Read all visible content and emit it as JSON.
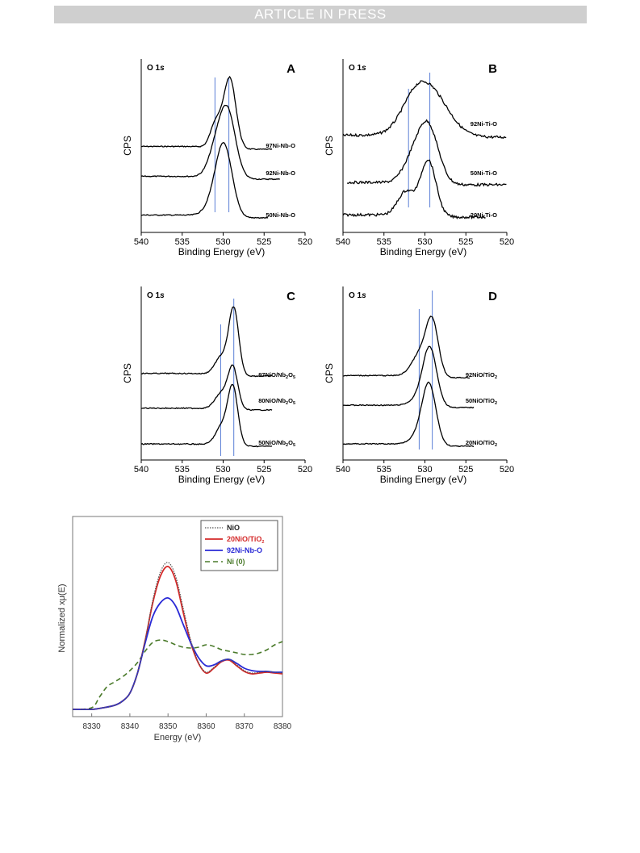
{
  "header": {
    "banner": "ARTICLE IN PRESS"
  },
  "chart_data": [
    {
      "panel": "A",
      "type": "line",
      "core_level": "O 1s",
      "xlabel": "Binding  Energy  (eV)",
      "ylabel": "CPS",
      "xlim": [
        540,
        520
      ],
      "xticks": [
        540,
        535,
        530,
        525,
        520
      ],
      "reference_lines": [
        531.0,
        529.3
      ],
      "series": [
        {
          "name": "97Ni-Nb-O",
          "peaks": [
            {
              "center": 529.2,
              "height": 1.0,
              "width": 0.75
            },
            {
              "center": 530.9,
              "height": 0.35,
              "width": 0.65
            }
          ],
          "x_range": [
            540,
            524
          ]
        },
        {
          "name": "92Ni-Nb-O",
          "peaks": [
            {
              "center": 529.5,
              "height": 0.95,
              "width": 1.0
            },
            {
              "center": 531.0,
              "height": 0.3,
              "width": 0.9
            }
          ],
          "x_range": [
            540,
            523
          ]
        },
        {
          "name": "50Ni-Nb-O",
          "peaks": [
            {
              "center": 529.9,
              "height": 1.0,
              "width": 1.0
            },
            {
              "center": 531.3,
              "height": 0.12,
              "width": 1.0
            }
          ],
          "x_range": [
            540,
            524.5
          ]
        }
      ]
    },
    {
      "panel": "B",
      "type": "line",
      "core_level": "O 1s",
      "xlabel": "Binding  Energy  (eV)",
      "ylabel": "CPS",
      "xlim": [
        540,
        520
      ],
      "xticks": [
        540,
        535,
        530,
        525,
        520
      ],
      "reference_lines": [
        532.0,
        529.4
      ],
      "series": [
        {
          "name": "92Ni-Ti-O",
          "peaks": [
            {
              "center": 529.6,
              "height": 1.0,
              "width": 2.3
            },
            {
              "center": 531.5,
              "height": 0.25,
              "width": 1.5
            }
          ],
          "x_range": [
            540,
            520
          ]
        },
        {
          "name": "50Ni-Ti-O",
          "peaks": [
            {
              "center": 529.7,
              "height": 1.0,
              "width": 1.3
            },
            {
              "center": 531.8,
              "height": 0.25,
              "width": 1.1
            }
          ],
          "x_range": [
            539.5,
            520
          ]
        },
        {
          "name": "20Ni-Ti-O",
          "peaks": [
            {
              "center": 529.6,
              "height": 1.0,
              "width": 0.95
            },
            {
              "center": 532.3,
              "height": 0.42,
              "width": 1.0
            }
          ],
          "x_range": [
            540,
            522.5
          ]
        }
      ]
    },
    {
      "panel": "C",
      "type": "line",
      "core_level": "O 1s",
      "xlabel": "Binding  Energy  (eV)",
      "ylabel": "CPS",
      "xlim": [
        540,
        520
      ],
      "xticks": [
        540,
        535,
        530,
        525,
        520
      ],
      "reference_lines": [
        530.3,
        528.7
      ],
      "series": [
        {
          "name": "97NiO/Nb2O5",
          "peaks": [
            {
              "center": 528.7,
              "height": 1.0,
              "width": 0.6
            },
            {
              "center": 530.2,
              "height": 0.28,
              "width": 0.8
            }
          ],
          "x_range": [
            540,
            524
          ]
        },
        {
          "name": "80NiO/Nb2O5",
          "peaks": [
            {
              "center": 528.8,
              "height": 0.92,
              "width": 0.6
            },
            {
              "center": 530.2,
              "height": 0.36,
              "width": 0.8
            }
          ],
          "x_range": [
            540,
            524
          ]
        },
        {
          "name": "50NiO/Nb2O5",
          "peaks": [
            {
              "center": 528.8,
              "height": 1.0,
              "width": 0.6
            },
            {
              "center": 530.1,
              "height": 0.35,
              "width": 0.8
            }
          ],
          "x_range": [
            540,
            524
          ]
        }
      ]
    },
    {
      "panel": "D",
      "type": "line",
      "core_level": "O 1s",
      "xlabel": "Binding  Energy  (eV)",
      "ylabel": "CPS",
      "xlim": [
        540,
        520
      ],
      "xticks": [
        540,
        535,
        530,
        525,
        520
      ],
      "reference_lines": [
        530.7,
        529.1
      ],
      "series": [
        {
          "name": "92NiO/TiO2",
          "peaks": [
            {
              "center": 529.1,
              "height": 1.0,
              "width": 0.75
            },
            {
              "center": 530.6,
              "height": 0.42,
              "width": 1.0
            }
          ],
          "x_range": [
            540,
            524.5
          ]
        },
        {
          "name": "50NiO/TiO2",
          "peaks": [
            {
              "center": 529.4,
              "height": 1.0,
              "width": 0.85
            },
            {
              "center": 530.8,
              "height": 0.12,
              "width": 1.0
            }
          ],
          "x_range": [
            540,
            524
          ]
        },
        {
          "name": "20NiO/TiO2",
          "peaks": [
            {
              "center": 529.5,
              "height": 1.0,
              "width": 0.85
            },
            {
              "center": 530.9,
              "height": 0.12,
              "width": 1.0
            }
          ],
          "x_range": [
            540,
            524
          ]
        }
      ]
    },
    {
      "panel": "XANES",
      "type": "line",
      "xlabel": "Energy (eV)",
      "ylabel": "Normalized xμ(E)",
      "xlim": [
        8325,
        8380
      ],
      "xticks": [
        8330,
        8340,
        8350,
        8360,
        8370,
        8380
      ],
      "legend": "top-right",
      "series": [
        {
          "name": "NiO",
          "color": "#555555",
          "style": "dotted",
          "x": [
            8325,
            8330,
            8333,
            8336,
            8338,
            8340,
            8342,
            8344,
            8346,
            8348,
            8350,
            8352,
            8354,
            8356,
            8358,
            8360,
            8362,
            8364,
            8366,
            8368,
            8370,
            8372,
            8374,
            8376,
            8378,
            8380
          ],
          "y": [
            0.0,
            0.0,
            0.02,
            0.05,
            0.1,
            0.2,
            0.45,
            0.85,
            1.35,
            1.7,
            1.82,
            1.65,
            1.25,
            0.85,
            0.58,
            0.46,
            0.52,
            0.6,
            0.62,
            0.55,
            0.48,
            0.45,
            0.46,
            0.47,
            0.46,
            0.45
          ]
        },
        {
          "name": "20NiO/TiO2",
          "color": "#d42a2a",
          "style": "solid",
          "x": [
            8325,
            8330,
            8333,
            8336,
            8338,
            8340,
            8342,
            8344,
            8346,
            8348,
            8350,
            8352,
            8354,
            8356,
            8358,
            8360,
            8362,
            8364,
            8366,
            8368,
            8370,
            8372,
            8374,
            8376,
            8378,
            8380
          ],
          "y": [
            0.0,
            0.0,
            0.02,
            0.05,
            0.1,
            0.2,
            0.45,
            0.85,
            1.32,
            1.65,
            1.77,
            1.6,
            1.2,
            0.82,
            0.57,
            0.45,
            0.51,
            0.59,
            0.61,
            0.54,
            0.47,
            0.44,
            0.45,
            0.46,
            0.45,
            0.44
          ]
        },
        {
          "name": "92Ni-Nb-O",
          "color": "#2a2ad6",
          "style": "solid",
          "x": [
            8325,
            8330,
            8333,
            8336,
            8338,
            8340,
            8342,
            8344,
            8346,
            8348,
            8350,
            8352,
            8354,
            8356,
            8358,
            8360,
            8362,
            8364,
            8366,
            8368,
            8370,
            8372,
            8374,
            8376,
            8378,
            8380
          ],
          "y": [
            0.0,
            0.0,
            0.02,
            0.05,
            0.1,
            0.2,
            0.45,
            0.82,
            1.15,
            1.32,
            1.38,
            1.28,
            1.05,
            0.82,
            0.64,
            0.54,
            0.55,
            0.6,
            0.62,
            0.57,
            0.51,
            0.48,
            0.47,
            0.47,
            0.46,
            0.46
          ]
        },
        {
          "name": "Ni (0)",
          "color": "#4a7a2a",
          "style": "dashed",
          "x": [
            8325,
            8330,
            8332,
            8334,
            8336,
            8338,
            8340,
            8342,
            8344,
            8346,
            8348,
            8350,
            8352,
            8354,
            8356,
            8358,
            8360,
            8362,
            8364,
            8366,
            8368,
            8370,
            8372,
            8374,
            8376,
            8378,
            8380
          ],
          "y": [
            0.0,
            0.02,
            0.15,
            0.28,
            0.34,
            0.4,
            0.48,
            0.58,
            0.72,
            0.83,
            0.86,
            0.84,
            0.8,
            0.77,
            0.76,
            0.77,
            0.8,
            0.78,
            0.74,
            0.72,
            0.7,
            0.68,
            0.68,
            0.7,
            0.74,
            0.8,
            0.84
          ]
        }
      ]
    }
  ],
  "labels": {
    "core": "O 1",
    "core_italic": "s",
    "letters": [
      "A",
      "B",
      "C",
      "D"
    ],
    "ylabel": "CPS",
    "xlabel": "Binding  Energy  (eV)",
    "xanes_ylabel": "Normalized xμ(E)",
    "xanes_xlabel": "Energy (eV)",
    "sample_labels": {
      "A": [
        "97Ni-Nb-O",
        "92Ni-Nb-O",
        "50Ni-Nb-O"
      ],
      "B": [
        "92Ni-Ti-O",
        "50Ni-Ti-O",
        "20Ni-Ti-O"
      ],
      "C": [
        [
          "97NiO/Nb",
          "2",
          "O",
          "5"
        ],
        [
          "80NiO/Nb",
          "2",
          "O",
          "5"
        ],
        [
          "50NiO/Nb",
          "2",
          "O",
          "5"
        ]
      ],
      "D": [
        [
          "92NiO/TiO",
          "2"
        ],
        [
          "50NiO/TiO",
          "2"
        ],
        [
          "20NiO/TiO",
          "2"
        ]
      ]
    },
    "legend": [
      {
        "text": "NiO",
        "sub": ""
      },
      {
        "text": "20NiO/TiO",
        "sub": "2"
      },
      {
        "text": "92Ni-Nb-O",
        "sub": ""
      },
      {
        "text": "Ni (0)",
        "sub": ""
      }
    ]
  },
  "colors": {
    "ref_line": "#5b7fd6",
    "curve": "#000000",
    "legend_border": "#555555"
  }
}
